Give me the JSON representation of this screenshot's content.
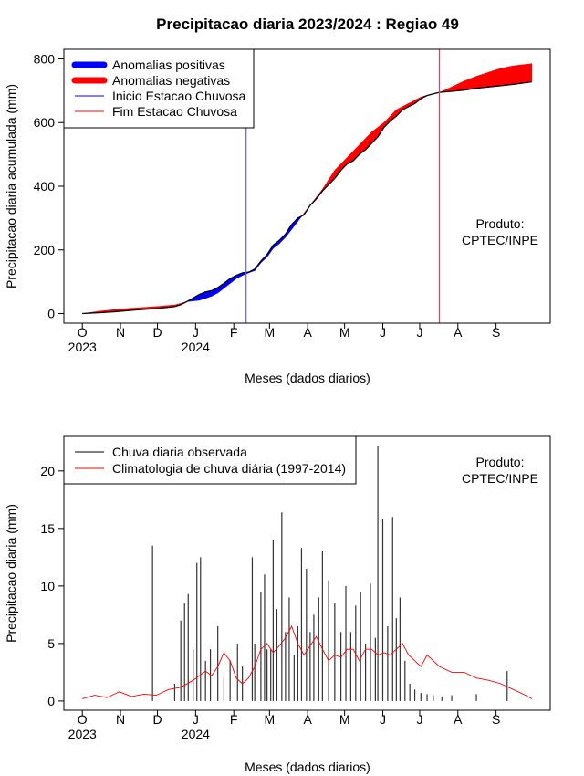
{
  "chart_data": [
    {
      "type": "area",
      "title": "Precipitacao diaria 2023/2024 : Regiao 49",
      "xlabel": "Meses (dados diarios)",
      "ylabel": "Precipitacao diaria acumulada (mm)",
      "x_ticks": [
        "O",
        "N",
        "D",
        "J",
        "F",
        "M",
        "A",
        "M",
        "J",
        "J",
        "A",
        "S"
      ],
      "x_tick_days": [
        0,
        31,
        61,
        92,
        123,
        152,
        183,
        213,
        244,
        274,
        305,
        336
      ],
      "x_year_labels": [
        {
          "label": "2023",
          "day": 0
        },
        {
          "label": "2024",
          "day": 92
        }
      ],
      "xlim_days": [
        -15,
        380
      ],
      "ylim": [
        -30,
        830
      ],
      "y_ticks": [
        0,
        200,
        400,
        600,
        800
      ],
      "legend": {
        "position": "top-left",
        "items": [
          {
            "label": "Anomalias positivas",
            "color": "#0000ff",
            "style": "thick"
          },
          {
            "label": "Anomalias negativas",
            "color": "#ff0000",
            "style": "thick"
          },
          {
            "label": "Inicio Estacao Chuvosa",
            "color": "#0000ff",
            "style": "thin"
          },
          {
            "label": "Fim Estacao Chuvosa",
            "color": "#ff0000",
            "style": "thin"
          }
        ]
      },
      "annotation": [
        "Produto:",
        "CPTEC/INPE"
      ],
      "rainy_season_start_day": 133,
      "rainy_season_end_day": 290,
      "observed_cumulative": {
        "days": [
          0,
          15,
          30,
          45,
          60,
          75,
          80,
          85,
          95,
          100,
          105,
          110,
          115,
          120,
          125,
          130,
          135,
          140,
          145,
          150,
          155,
          160,
          165,
          170,
          175,
          180,
          185,
          190,
          195,
          200,
          205,
          210,
          215,
          220,
          225,
          230,
          235,
          240,
          245,
          250,
          255,
          260,
          265,
          270,
          275,
          280,
          285,
          290,
          300,
          310,
          320,
          330,
          340,
          350,
          365
        ],
        "values": [
          0,
          3,
          7,
          12,
          16,
          22,
          28,
          38,
          60,
          68,
          72,
          82,
          95,
          110,
          120,
          128,
          130,
          140,
          165,
          185,
          215,
          230,
          250,
          280,
          300,
          310,
          340,
          360,
          385,
          405,
          425,
          450,
          470,
          480,
          500,
          515,
          535,
          555,
          585,
          605,
          620,
          640,
          650,
          660,
          675,
          685,
          690,
          695,
          698,
          702,
          708,
          712,
          716,
          720,
          728
        ]
      },
      "climatology_cumulative": {
        "days": [
          0,
          15,
          30,
          45,
          60,
          75,
          80,
          85,
          95,
          100,
          105,
          110,
          115,
          120,
          125,
          130,
          135,
          140,
          145,
          150,
          155,
          160,
          165,
          170,
          175,
          180,
          185,
          190,
          195,
          200,
          205,
          210,
          215,
          220,
          225,
          230,
          235,
          240,
          245,
          250,
          255,
          260,
          265,
          270,
          275,
          280,
          285,
          290,
          300,
          310,
          320,
          330,
          340,
          350,
          365
        ],
        "values": [
          0,
          8,
          14,
          18,
          22,
          27,
          32,
          38,
          42,
          48,
          55,
          65,
          80,
          95,
          110,
          120,
          128,
          135,
          160,
          178,
          205,
          220,
          240,
          265,
          290,
          315,
          340,
          365,
          390,
          420,
          450,
          470,
          490,
          510,
          530,
          550,
          570,
          585,
          600,
          620,
          640,
          650,
          660,
          670,
          680,
          686,
          690,
          694,
          712,
          730,
          745,
          758,
          770,
          778,
          785
        ]
      }
    },
    {
      "type": "bar",
      "title": "",
      "xlabel": "Meses (dados diarios)",
      "ylabel": "Precipitacao diaria (mm)",
      "x_ticks": [
        "O",
        "N",
        "D",
        "J",
        "F",
        "M",
        "A",
        "M",
        "J",
        "J",
        "A",
        "S"
      ],
      "x_tick_days": [
        0,
        31,
        61,
        92,
        123,
        152,
        183,
        213,
        244,
        274,
        305,
        336
      ],
      "x_year_labels": [
        {
          "label": "2023",
          "day": 0
        },
        {
          "label": "2024",
          "day": 92
        }
      ],
      "xlim_days": [
        -15,
        380
      ],
      "ylim": [
        -0.8,
        23
      ],
      "y_ticks": [
        0,
        5,
        10,
        15,
        20
      ],
      "legend": {
        "position": "top-left",
        "items": [
          {
            "label": "Chuva diaria observada",
            "color": "#000000"
          },
          {
            "label": "Climatologia de chuva diária (1997-2014)",
            "color": "#ff0000"
          }
        ]
      },
      "annotation": [
        "Produto:",
        "CPTEC/INPE"
      ],
      "observed_daily_peaks": {
        "days": [
          57,
          75,
          80,
          83,
          86,
          90,
          93,
          96,
          100,
          104,
          110,
          115,
          120,
          126,
          130,
          138,
          140,
          145,
          148,
          150,
          153,
          155,
          158,
          162,
          165,
          168,
          172,
          175,
          178,
          182,
          185,
          188,
          192,
          195,
          200,
          205,
          210,
          214,
          218,
          222,
          226,
          230,
          234,
          238,
          240,
          244,
          248,
          252,
          255,
          258,
          262,
          266,
          270,
          275,
          280,
          285,
          292,
          300,
          320,
          345
        ],
        "values": [
          13.5,
          1.5,
          7.0,
          8.5,
          9.3,
          4.5,
          12.0,
          12.5,
          3.5,
          4.5,
          6.5,
          2.0,
          3.5,
          5.0,
          3.0,
          12.5,
          5.0,
          9.5,
          11.0,
          4.5,
          4.5,
          14.0,
          8.0,
          16.4,
          6.0,
          9.0,
          4.0,
          6.5,
          13.3,
          11.5,
          6.0,
          7.5,
          9.0,
          13.0,
          10.5,
          8.5,
          6.0,
          10.0,
          6.0,
          8.3,
          9.5,
          5.0,
          10.2,
          5.5,
          22.2,
          15.8,
          6.5,
          16.0,
          7.2,
          9.0,
          3.5,
          1.5,
          1.0,
          0.7,
          0.6,
          0.5,
          0.4,
          0.5,
          0.6,
          2.6
        ]
      },
      "climatology_daily": {
        "days": [
          0,
          10,
          20,
          30,
          40,
          50,
          60,
          70,
          80,
          90,
          95,
          100,
          105,
          110,
          115,
          120,
          125,
          130,
          135,
          140,
          145,
          150,
          155,
          160,
          165,
          170,
          175,
          180,
          185,
          190,
          195,
          200,
          205,
          210,
          215,
          220,
          225,
          230,
          235,
          240,
          245,
          250,
          255,
          260,
          265,
          270,
          275,
          280,
          290,
          300,
          310,
          320,
          330,
          340,
          350,
          360,
          365
        ],
        "values": [
          0.2,
          0.5,
          0.3,
          0.8,
          0.4,
          0.6,
          0.5,
          1.0,
          1.2,
          1.8,
          2.2,
          2.6,
          2.2,
          3.0,
          4.2,
          3.5,
          2.0,
          1.5,
          2.0,
          3.0,
          4.5,
          5.0,
          4.2,
          4.8,
          5.5,
          6.5,
          5.0,
          4.0,
          4.8,
          5.6,
          4.5,
          3.5,
          4.0,
          3.8,
          4.5,
          4.5,
          3.5,
          4.5,
          4.5,
          4.0,
          4.2,
          4.0,
          4.5,
          5.0,
          4.0,
          3.5,
          3.0,
          4.0,
          3.0,
          2.5,
          2.5,
          2.0,
          1.8,
          1.5,
          1.0,
          0.5,
          0.2
        ]
      }
    }
  ]
}
